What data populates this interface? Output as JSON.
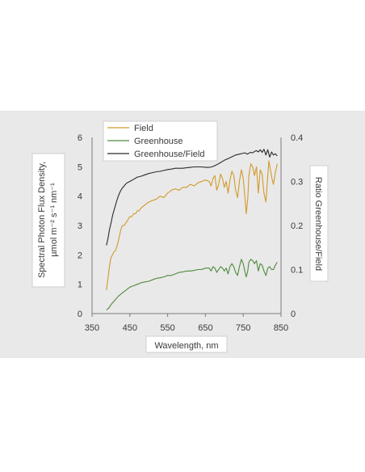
{
  "chart_data": {
    "type": "line",
    "xlabel": "Wavelength, nm",
    "ylabel_lines": [
      "Spectral Photon Flux Density,",
      "µmol m⁻² s⁻¹ nm⁻¹"
    ],
    "y2label": "Ratio Greenhouse/Field",
    "xlim": [
      350,
      850
    ],
    "xticks": [
      "350",
      "450",
      "550",
      "650",
      "750",
      "850"
    ],
    "ylim": [
      0,
      6
    ],
    "yticks": [
      "0",
      "1",
      "2",
      "3",
      "4",
      "5",
      "6"
    ],
    "y2lim": [
      0,
      0.4
    ],
    "y2ticks": [
      "0",
      "0.1",
      "0.2",
      "0.3",
      "0.4"
    ],
    "legend": [
      "Field",
      "Greenhouse",
      "Greenhouse/Field"
    ],
    "legend_position": "top",
    "series": [
      {
        "name": "Field",
        "axis": "left",
        "color": "#d19a2a",
        "x": [
          388,
          392,
          396,
          400,
          404,
          408,
          412,
          416,
          420,
          425,
          430,
          435,
          440,
          445,
          450,
          455,
          460,
          465,
          470,
          475,
          480,
          490,
          500,
          510,
          520,
          530,
          540,
          550,
          560,
          570,
          580,
          590,
          600,
          610,
          620,
          630,
          640,
          650,
          660,
          665,
          670,
          675,
          680,
          685,
          690,
          695,
          700,
          705,
          710,
          715,
          720,
          725,
          730,
          735,
          740,
          745,
          750,
          755,
          758,
          762,
          765,
          770,
          775,
          780,
          785,
          790,
          795,
          800,
          805,
          810,
          815,
          818,
          822,
          826,
          830,
          835,
          840
        ],
        "y": [
          0.8,
          1.2,
          1.6,
          1.9,
          2.0,
          2.1,
          2.15,
          2.3,
          2.5,
          2.8,
          3.0,
          3.0,
          3.1,
          3.2,
          3.3,
          3.3,
          3.4,
          3.4,
          3.5,
          3.5,
          3.6,
          3.7,
          3.8,
          3.85,
          3.9,
          4.0,
          3.95,
          4.1,
          4.2,
          4.25,
          4.2,
          4.3,
          4.3,
          4.4,
          4.35,
          4.45,
          4.5,
          4.55,
          4.5,
          4.35,
          4.6,
          4.7,
          4.2,
          4.4,
          4.75,
          4.6,
          4.3,
          4.5,
          4.1,
          4.55,
          4.85,
          4.7,
          4.2,
          3.95,
          4.5,
          4.9,
          4.6,
          3.9,
          3.4,
          3.9,
          4.7,
          5.1,
          5.0,
          4.7,
          5.0,
          4.1,
          4.9,
          4.75,
          4.1,
          3.8,
          4.7,
          5.2,
          4.9,
          4.6,
          4.4,
          4.8,
          5.1
        ]
      },
      {
        "name": "Greenhouse",
        "axis": "left",
        "color": "#4f8a3c",
        "x": [
          388,
          395,
          400,
          405,
          410,
          420,
          430,
          440,
          450,
          460,
          470,
          480,
          490,
          500,
          510,
          520,
          530,
          540,
          550,
          560,
          570,
          580,
          590,
          600,
          610,
          620,
          630,
          640,
          650,
          660,
          665,
          670,
          675,
          680,
          685,
          690,
          695,
          700,
          705,
          710,
          715,
          720,
          725,
          730,
          735,
          740,
          745,
          750,
          755,
          758,
          762,
          765,
          770,
          775,
          780,
          785,
          790,
          795,
          800,
          805,
          810,
          815,
          820,
          825,
          830,
          835,
          840
        ],
        "y": [
          0.12,
          0.2,
          0.3,
          0.38,
          0.45,
          0.6,
          0.7,
          0.8,
          0.9,
          0.95,
          1.0,
          1.05,
          1.08,
          1.1,
          1.15,
          1.2,
          1.22,
          1.25,
          1.3,
          1.3,
          1.35,
          1.4,
          1.42,
          1.45,
          1.45,
          1.47,
          1.5,
          1.5,
          1.55,
          1.55,
          1.45,
          1.6,
          1.55,
          1.4,
          1.5,
          1.6,
          1.55,
          1.45,
          1.55,
          1.35,
          1.6,
          1.7,
          1.6,
          1.4,
          1.3,
          1.6,
          1.85,
          1.7,
          1.4,
          1.25,
          1.45,
          1.75,
          1.85,
          1.8,
          1.7,
          1.8,
          1.45,
          1.7,
          1.65,
          1.45,
          1.3,
          1.55,
          1.6,
          1.5,
          1.5,
          1.65,
          1.75
        ]
      },
      {
        "name": "Greenhouse/Field",
        "axis": "right",
        "color": "#2b2b2b",
        "x": [
          388,
          392,
          396,
          400,
          405,
          410,
          415,
          420,
          425,
          430,
          435,
          440,
          445,
          450,
          460,
          470,
          480,
          490,
          500,
          510,
          520,
          530,
          540,
          550,
          560,
          570,
          580,
          590,
          600,
          610,
          620,
          630,
          640,
          650,
          660,
          670,
          680,
          690,
          700,
          710,
          720,
          730,
          740,
          750,
          755,
          760,
          765,
          770,
          775,
          780,
          785,
          790,
          795,
          800,
          805,
          810,
          815,
          820,
          825,
          830,
          835,
          840
        ],
        "y": [
          0.155,
          0.17,
          0.19,
          0.205,
          0.225,
          0.24,
          0.255,
          0.268,
          0.278,
          0.285,
          0.29,
          0.295,
          0.298,
          0.3,
          0.305,
          0.31,
          0.312,
          0.315,
          0.318,
          0.32,
          0.322,
          0.323,
          0.325,
          0.327,
          0.328,
          0.33,
          0.33,
          0.33,
          0.331,
          0.332,
          0.333,
          0.333,
          0.333,
          0.332,
          0.332,
          0.334,
          0.338,
          0.343,
          0.348,
          0.352,
          0.356,
          0.36,
          0.362,
          0.364,
          0.365,
          0.362,
          0.364,
          0.366,
          0.365,
          0.368,
          0.37,
          0.367,
          0.372,
          0.366,
          0.373,
          0.36,
          0.372,
          0.355,
          0.367,
          0.36,
          0.363,
          0.358
        ]
      }
    ]
  }
}
